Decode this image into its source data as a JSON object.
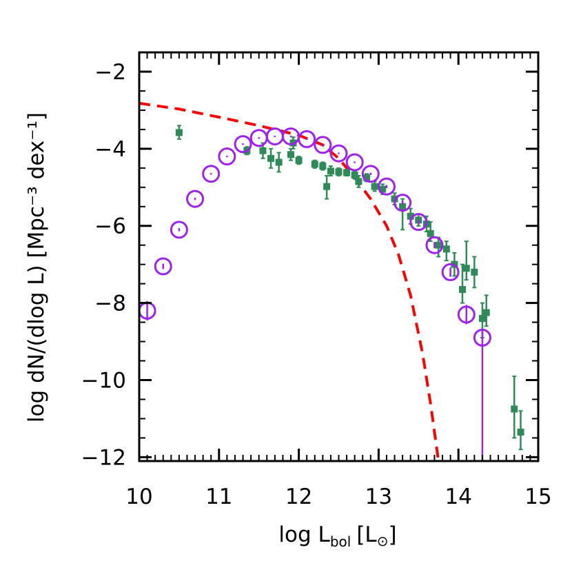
{
  "chart_data": {
    "type": "scatter",
    "title": "",
    "xlabel": {
      "main": "log L",
      "sub": "bol",
      "unit": "[L",
      "sun": "⊙",
      "close": "]"
    },
    "ylabel": "log dN/(dlog L) [Mpc⁻³ dex⁻¹]",
    "xlim": [
      10,
      15
    ],
    "ylim": [
      -12.1,
      -1.5
    ],
    "x_ticks": [
      "10",
      "11",
      "12",
      "13",
      "14",
      "15"
    ],
    "y_ticks": [
      "−2",
      "−4",
      "−6",
      "−8",
      "−10",
      "−12"
    ],
    "grid": false,
    "legend": "none",
    "colors": {
      "squares": "#2e8b57",
      "circles": "#a020f0",
      "dashed_line": "#ff0000"
    },
    "series": [
      {
        "marker": "open-circle",
        "points": [
          {
            "x": 10.1,
            "y": -8.2,
            "lo": -8.45,
            "hi": -7.95
          },
          {
            "x": 10.3,
            "y": -7.05,
            "lo": -7.12,
            "hi": -6.98
          },
          {
            "x": 10.5,
            "y": -6.1,
            "lo": -6.14,
            "hi": -6.06
          },
          {
            "x": 10.7,
            "y": -5.3,
            "lo": -5.33,
            "hi": -5.27
          },
          {
            "x": 10.9,
            "y": -4.65,
            "lo": -4.67,
            "hi": -4.63
          },
          {
            "x": 11.1,
            "y": -4.2,
            "lo": -4.22,
            "hi": -4.18
          },
          {
            "x": 11.3,
            "y": -3.88,
            "lo": -3.9,
            "hi": -3.86
          },
          {
            "x": 11.5,
            "y": -3.72,
            "lo": -3.74,
            "hi": -3.7
          },
          {
            "x": 11.7,
            "y": -3.68,
            "lo": -3.7,
            "hi": -3.66
          },
          {
            "x": 11.9,
            "y": -3.68,
            "lo": -3.7,
            "hi": -3.66
          },
          {
            "x": 12.1,
            "y": -3.75,
            "lo": -3.77,
            "hi": -3.73
          },
          {
            "x": 12.3,
            "y": -3.9,
            "lo": -3.92,
            "hi": -3.88
          },
          {
            "x": 12.5,
            "y": -4.12,
            "lo": -4.14,
            "hi": -4.1
          },
          {
            "x": 12.7,
            "y": -4.35,
            "lo": -4.37,
            "hi": -4.33
          },
          {
            "x": 12.9,
            "y": -4.65,
            "lo": -4.68,
            "hi": -4.62
          },
          {
            "x": 13.1,
            "y": -4.98,
            "lo": -5.02,
            "hi": -4.94
          },
          {
            "x": 13.3,
            "y": -5.4,
            "lo": -5.45,
            "hi": -5.35
          },
          {
            "x": 13.5,
            "y": -5.9,
            "lo": -5.96,
            "hi": -5.84
          },
          {
            "x": 13.7,
            "y": -6.5,
            "lo": -6.58,
            "hi": -6.42
          },
          {
            "x": 13.9,
            "y": -7.2,
            "lo": -7.32,
            "hi": -7.08
          },
          {
            "x": 14.1,
            "y": -8.3,
            "lo": -8.55,
            "hi": -8.05
          },
          {
            "x": 14.3,
            "y": -8.9,
            "lo": -12.1,
            "hi": -8.7
          }
        ]
      },
      {
        "marker": "filled-square",
        "points": [
          {
            "x": 10.5,
            "y": -3.58,
            "lo": -3.75,
            "hi": -3.4
          },
          {
            "x": 11.35,
            "y": -4.05,
            "lo": -4.15,
            "hi": -3.95
          },
          {
            "x": 11.55,
            "y": -4.05,
            "lo": -4.25,
            "hi": -3.85
          },
          {
            "x": 11.65,
            "y": -4.25,
            "lo": -4.5,
            "hi": -4.0
          },
          {
            "x": 11.75,
            "y": -4.35,
            "lo": -4.6,
            "hi": -4.1
          },
          {
            "x": 11.9,
            "y": -4.15,
            "lo": -4.3,
            "hi": -4.0
          },
          {
            "x": 11.93,
            "y": -3.85,
            "lo": -4.0,
            "hi": -3.7
          },
          {
            "x": 12.0,
            "y": -4.3,
            "lo": -4.4,
            "hi": -4.2
          },
          {
            "x": 12.2,
            "y": -4.4,
            "lo": -4.5,
            "hi": -4.3
          },
          {
            "x": 12.3,
            "y": -4.45,
            "lo": -4.55,
            "hi": -4.35
          },
          {
            "x": 12.35,
            "y": -4.98,
            "lo": -5.3,
            "hi": -4.7
          },
          {
            "x": 12.4,
            "y": -4.58,
            "lo": -4.7,
            "hi": -4.45
          },
          {
            "x": 12.5,
            "y": -4.6,
            "lo": -4.7,
            "hi": -4.5
          },
          {
            "x": 12.6,
            "y": -4.62,
            "lo": -4.7,
            "hi": -4.54
          },
          {
            "x": 12.7,
            "y": -4.68,
            "lo": -4.78,
            "hi": -4.58
          },
          {
            "x": 12.75,
            "y": -4.85,
            "lo": -5.0,
            "hi": -4.7
          },
          {
            "x": 12.85,
            "y": -4.75,
            "lo": -4.85,
            "hi": -4.65
          },
          {
            "x": 12.95,
            "y": -4.98,
            "lo": -5.1,
            "hi": -4.85
          },
          {
            "x": 13.05,
            "y": -5.05,
            "lo": -5.18,
            "hi": -4.92
          },
          {
            "x": 13.2,
            "y": -5.3,
            "lo": -5.45,
            "hi": -5.15
          },
          {
            "x": 13.3,
            "y": -5.5,
            "lo": -6.1,
            "hi": -5.3
          },
          {
            "x": 13.4,
            "y": -5.75,
            "lo": -5.95,
            "hi": -5.55
          },
          {
            "x": 13.5,
            "y": -5.85,
            "lo": -6.0,
            "hi": -5.7
          },
          {
            "x": 13.6,
            "y": -5.95,
            "lo": -6.15,
            "hi": -5.75
          },
          {
            "x": 13.65,
            "y": -6.2,
            "lo": -6.4,
            "hi": -5.9
          },
          {
            "x": 13.75,
            "y": -6.5,
            "lo": -6.8,
            "hi": -6.3
          },
          {
            "x": 13.85,
            "y": -6.6,
            "lo": -6.9,
            "hi": -6.4
          },
          {
            "x": 13.95,
            "y": -7.0,
            "lo": -7.3,
            "hi": -6.7
          },
          {
            "x": 14.05,
            "y": -7.65,
            "lo": -8.0,
            "hi": -7.0
          },
          {
            "x": 14.1,
            "y": -7.1,
            "lo": -7.4,
            "hi": -6.4
          },
          {
            "x": 14.2,
            "y": -7.2,
            "lo": -7.6,
            "hi": -6.8
          },
          {
            "x": 14.3,
            "y": -8.4,
            "lo": -8.9,
            "hi": -8.0
          },
          {
            "x": 14.35,
            "y": -8.25,
            "lo": -8.6,
            "hi": -7.8
          },
          {
            "x": 14.7,
            "y": -10.75,
            "lo": -11.5,
            "hi": -9.9
          },
          {
            "x": 14.78,
            "y": -11.35,
            "lo": -11.8,
            "hi": -10.8
          }
        ]
      },
      {
        "marker": "dashed-line",
        "points": [
          {
            "x": 10.0,
            "y": -2.82
          },
          {
            "x": 10.5,
            "y": -2.97
          },
          {
            "x": 11.0,
            "y": -3.18
          },
          {
            "x": 11.5,
            "y": -3.4
          },
          {
            "x": 12.0,
            "y": -3.65
          },
          {
            "x": 12.3,
            "y": -3.9
          },
          {
            "x": 12.5,
            "y": -4.25
          },
          {
            "x": 12.7,
            "y": -4.75
          },
          {
            "x": 12.9,
            "y": -5.3
          },
          {
            "x": 13.1,
            "y": -6.0
          },
          {
            "x": 13.25,
            "y": -6.75
          },
          {
            "x": 13.4,
            "y": -7.8
          },
          {
            "x": 13.55,
            "y": -9.3
          },
          {
            "x": 13.65,
            "y": -10.6
          },
          {
            "x": 13.75,
            "y": -12.1
          }
        ]
      }
    ]
  }
}
